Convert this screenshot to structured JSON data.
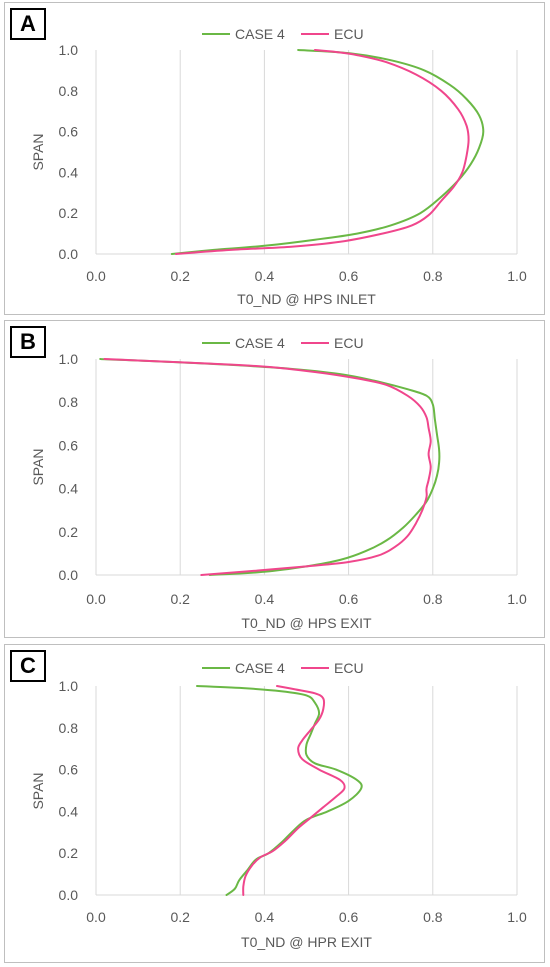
{
  "colors": {
    "case4": "#6ab845",
    "ecu": "#f0468c",
    "grid": "#d9d9d9",
    "text": "#595959"
  },
  "chart_data": [
    {
      "type": "line",
      "panel_label": "A",
      "xlabel": "T0_ND @ HPS INLET",
      "ylabel": "SPAN",
      "xlim": [
        0.0,
        1.0
      ],
      "ylim": [
        0.0,
        1.0
      ],
      "xticks": [
        "0.0",
        "0.2",
        "0.4",
        "0.6",
        "0.8",
        "1.0"
      ],
      "yticks": [
        "0.0",
        "0.2",
        "0.4",
        "0.6",
        "0.8",
        "1.0"
      ],
      "grid": "vertical",
      "legend": "top-center",
      "series": [
        {
          "name": "CASE 4",
          "color": "#6ab845",
          "points": [
            [
              0.18,
              0.0
            ],
            [
              0.28,
              0.02
            ],
            [
              0.4,
              0.04
            ],
            [
              0.52,
              0.07
            ],
            [
              0.62,
              0.1
            ],
            [
              0.7,
              0.14
            ],
            [
              0.77,
              0.2
            ],
            [
              0.82,
              0.28
            ],
            [
              0.86,
              0.36
            ],
            [
              0.89,
              0.44
            ],
            [
              0.91,
              0.52
            ],
            [
              0.92,
              0.6
            ],
            [
              0.91,
              0.68
            ],
            [
              0.88,
              0.76
            ],
            [
              0.84,
              0.83
            ],
            [
              0.78,
              0.9
            ],
            [
              0.7,
              0.95
            ],
            [
              0.6,
              0.985
            ],
            [
              0.48,
              1.0
            ]
          ]
        },
        {
          "name": "ECU",
          "color": "#f0468c",
          "points": [
            [
              0.19,
              0.0
            ],
            [
              0.32,
              0.02
            ],
            [
              0.46,
              0.035
            ],
            [
              0.58,
              0.06
            ],
            [
              0.68,
              0.1
            ],
            [
              0.75,
              0.14
            ],
            [
              0.79,
              0.19
            ],
            [
              0.82,
              0.26
            ],
            [
              0.85,
              0.33
            ],
            [
              0.87,
              0.4
            ],
            [
              0.88,
              0.48
            ],
            [
              0.885,
              0.56
            ],
            [
              0.88,
              0.63
            ],
            [
              0.86,
              0.71
            ],
            [
              0.82,
              0.8
            ],
            [
              0.76,
              0.88
            ],
            [
              0.69,
              0.94
            ],
            [
              0.62,
              0.975
            ],
            [
              0.57,
              0.99
            ],
            [
              0.52,
              1.0
            ]
          ]
        }
      ]
    },
    {
      "type": "line",
      "panel_label": "B",
      "xlabel": "T0_ND @ HPS EXIT",
      "ylabel": "SPAN",
      "xlim": [
        0.0,
        1.0
      ],
      "ylim": [
        0.0,
        1.0
      ],
      "xticks": [
        "0.0",
        "0.2",
        "0.4",
        "0.6",
        "0.8",
        "1.0"
      ],
      "yticks": [
        "0.0",
        "0.2",
        "0.4",
        "0.6",
        "0.8",
        "1.0"
      ],
      "grid": "vertical",
      "legend": "top-center",
      "series": [
        {
          "name": "CASE 4",
          "color": "#6ab845",
          "points": [
            [
              0.27,
              0.0
            ],
            [
              0.4,
              0.015
            ],
            [
              0.5,
              0.04
            ],
            [
              0.58,
              0.07
            ],
            [
              0.64,
              0.11
            ],
            [
              0.69,
              0.16
            ],
            [
              0.73,
              0.22
            ],
            [
              0.76,
              0.28
            ],
            [
              0.785,
              0.34
            ],
            [
              0.8,
              0.4
            ],
            [
              0.81,
              0.46
            ],
            [
              0.815,
              0.52
            ],
            [
              0.815,
              0.58
            ],
            [
              0.81,
              0.65
            ],
            [
              0.805,
              0.72
            ],
            [
              0.8,
              0.79
            ],
            [
              0.785,
              0.83
            ],
            [
              0.74,
              0.86
            ],
            [
              0.66,
              0.9
            ],
            [
              0.58,
              0.93
            ],
            [
              0.46,
              0.955
            ],
            [
              0.3,
              0.975
            ],
            [
              0.14,
              0.99
            ],
            [
              0.03,
              0.998
            ],
            [
              0.01,
              1.0
            ]
          ]
        },
        {
          "name": "ECU",
          "color": "#f0468c",
          "points": [
            [
              0.25,
              0.0
            ],
            [
              0.38,
              0.02
            ],
            [
              0.5,
              0.04
            ],
            [
              0.6,
              0.06
            ],
            [
              0.67,
              0.09
            ],
            [
              0.71,
              0.13
            ],
            [
              0.74,
              0.18
            ],
            [
              0.76,
              0.24
            ],
            [
              0.775,
              0.3
            ],
            [
              0.785,
              0.36
            ],
            [
              0.785,
              0.4
            ],
            [
              0.79,
              0.44
            ],
            [
              0.795,
              0.5
            ],
            [
              0.79,
              0.56
            ],
            [
              0.795,
              0.62
            ],
            [
              0.79,
              0.68
            ],
            [
              0.785,
              0.73
            ],
            [
              0.77,
              0.78
            ],
            [
              0.74,
              0.83
            ],
            [
              0.69,
              0.88
            ],
            [
              0.62,
              0.91
            ],
            [
              0.52,
              0.94
            ],
            [
              0.4,
              0.965
            ],
            [
              0.25,
              0.98
            ],
            [
              0.1,
              0.993
            ],
            [
              0.02,
              1.0
            ]
          ]
        }
      ]
    },
    {
      "type": "line",
      "panel_label": "C",
      "xlabel": "T0_ND @ HPR EXIT",
      "ylabel": "SPAN",
      "xlim": [
        0.0,
        1.0
      ],
      "ylim": [
        0.0,
        1.0
      ],
      "xticks": [
        "0.0",
        "0.2",
        "0.4",
        "0.6",
        "0.8",
        "1.0"
      ],
      "yticks": [
        "0.0",
        "0.2",
        "0.4",
        "0.6",
        "0.8",
        "1.0"
      ],
      "grid": "vertical",
      "legend": "top-center",
      "series": [
        {
          "name": "CASE 4",
          "color": "#6ab845",
          "points": [
            [
              0.31,
              0.0
            ],
            [
              0.33,
              0.03
            ],
            [
              0.34,
              0.07
            ],
            [
              0.36,
              0.12
            ],
            [
              0.38,
              0.17
            ],
            [
              0.41,
              0.2
            ],
            [
              0.44,
              0.25
            ],
            [
              0.47,
              0.31
            ],
            [
              0.5,
              0.36
            ],
            [
              0.55,
              0.4
            ],
            [
              0.6,
              0.45
            ],
            [
              0.63,
              0.51
            ],
            [
              0.62,
              0.55
            ],
            [
              0.57,
              0.6
            ],
            [
              0.52,
              0.63
            ],
            [
              0.5,
              0.67
            ],
            [
              0.5,
              0.72
            ],
            [
              0.51,
              0.77
            ],
            [
              0.52,
              0.82
            ],
            [
              0.53,
              0.87
            ],
            [
              0.52,
              0.92
            ],
            [
              0.5,
              0.955
            ],
            [
              0.44,
              0.975
            ],
            [
              0.35,
              0.99
            ],
            [
              0.24,
              1.0
            ]
          ]
        },
        {
          "name": "ECU",
          "color": "#f0468c",
          "points": [
            [
              0.35,
              0.0
            ],
            [
              0.35,
              0.04
            ],
            [
              0.355,
              0.09
            ],
            [
              0.37,
              0.14
            ],
            [
              0.39,
              0.18
            ],
            [
              0.42,
              0.21
            ],
            [
              0.45,
              0.26
            ],
            [
              0.48,
              0.32
            ],
            [
              0.51,
              0.37
            ],
            [
              0.54,
              0.42
            ],
            [
              0.57,
              0.47
            ],
            [
              0.59,
              0.51
            ],
            [
              0.58,
              0.55
            ],
            [
              0.53,
              0.6
            ],
            [
              0.49,
              0.65
            ],
            [
              0.48,
              0.7
            ],
            [
              0.49,
              0.74
            ],
            [
              0.51,
              0.79
            ],
            [
              0.53,
              0.84
            ],
            [
              0.54,
              0.89
            ],
            [
              0.54,
              0.94
            ],
            [
              0.52,
              0.965
            ],
            [
              0.47,
              0.985
            ],
            [
              0.43,
              1.0
            ]
          ]
        }
      ]
    }
  ]
}
